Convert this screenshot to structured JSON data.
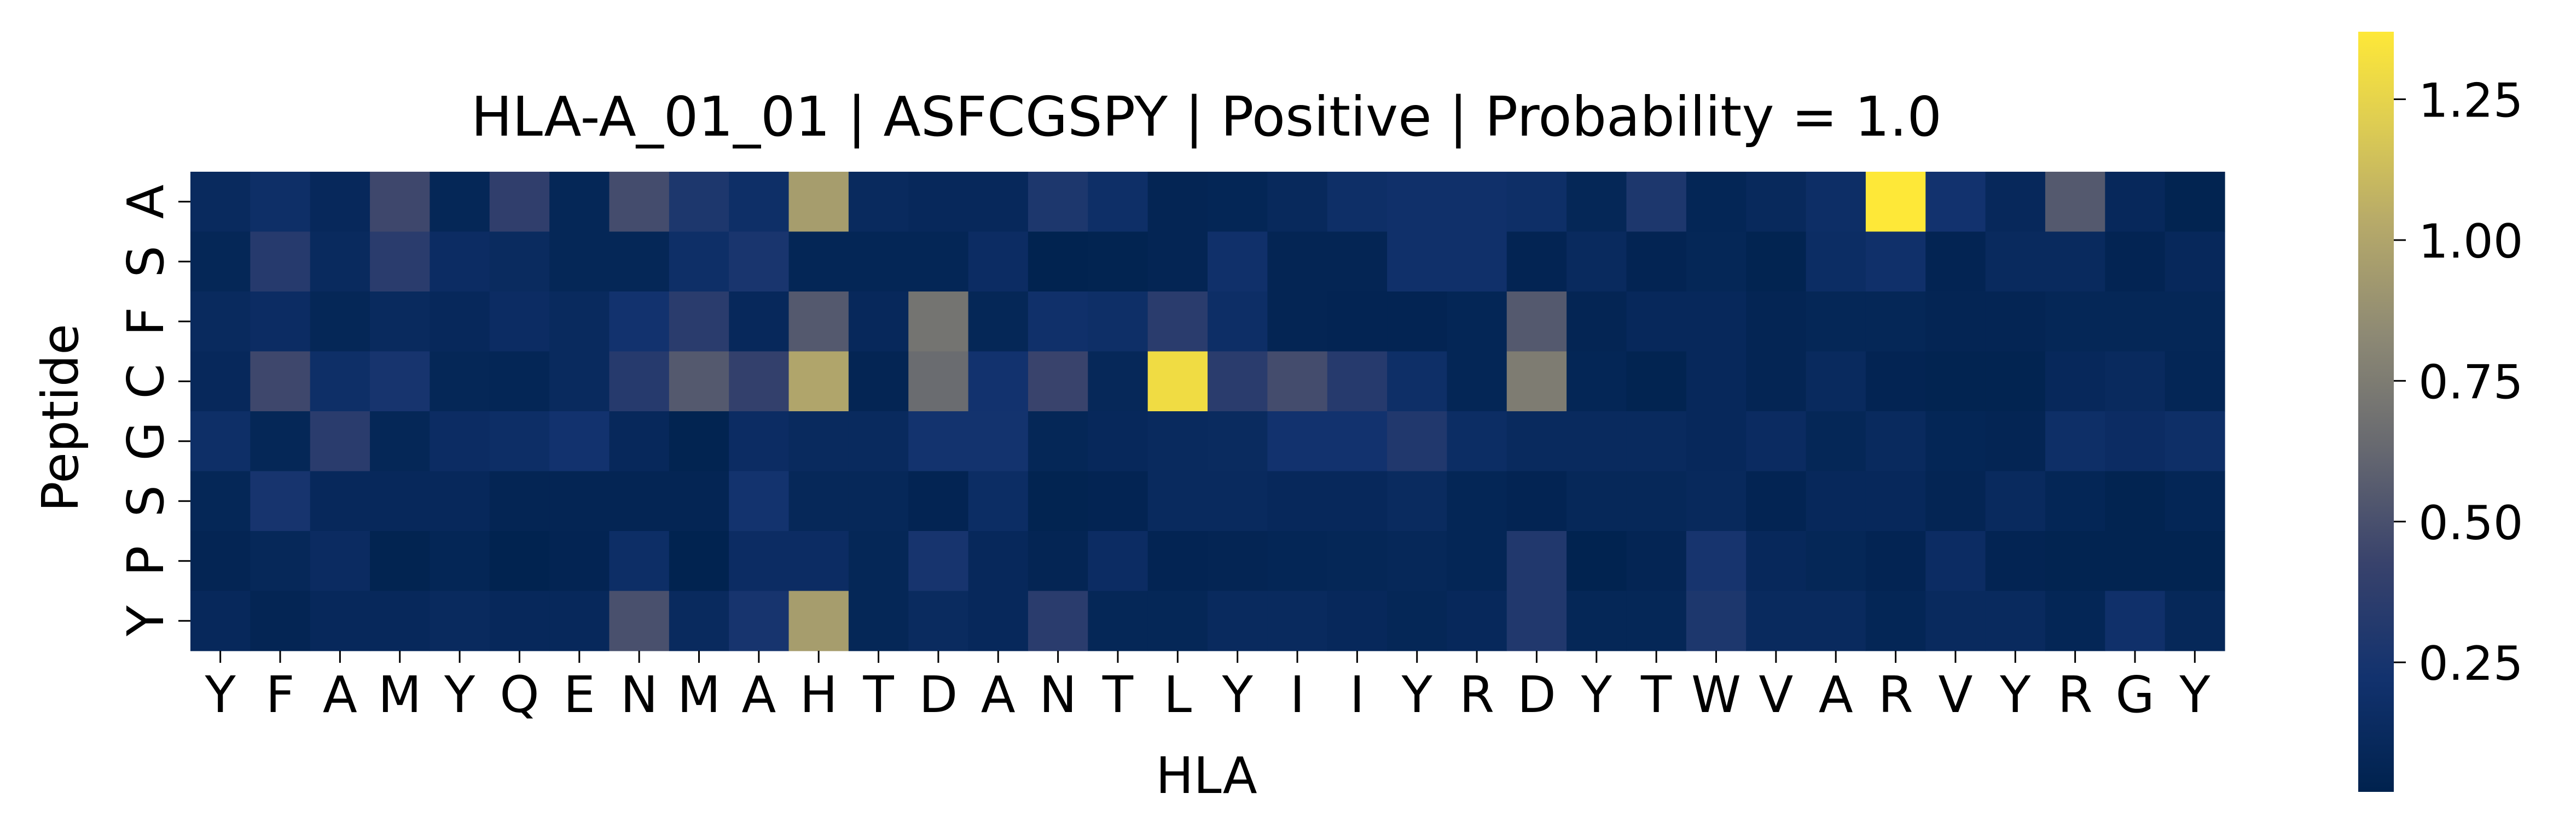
{
  "chart_data": {
    "type": "heatmap",
    "title": "HLA-A_01_01 | ASFCGSPY | Positive | Probability = 1.0",
    "xlabel": "HLA",
    "ylabel": "Peptide",
    "x_categories": [
      "Y",
      "F",
      "A",
      "M",
      "Y",
      "Q",
      "E",
      "N",
      "M",
      "A",
      "H",
      "T",
      "D",
      "A",
      "N",
      "T",
      "L",
      "Y",
      "I",
      "I",
      "Y",
      "R",
      "D",
      "Y",
      "T",
      "W",
      "V",
      "A",
      "R",
      "V",
      "Y",
      "R",
      "G",
      "Y"
    ],
    "y_categories": [
      "A",
      "S",
      "F",
      "C",
      "G",
      "S",
      "P",
      "Y"
    ],
    "colormap": "cividis",
    "colorbar": {
      "range": [
        0.02,
        1.37
      ],
      "ticks": [
        0.25,
        0.5,
        0.75,
        1.0,
        1.25
      ],
      "tick_labels": [
        "0.25",
        "0.50",
        "0.75",
        "1.00",
        "1.25"
      ]
    },
    "values": [
      [
        0.12,
        0.18,
        0.1,
        0.45,
        0.08,
        0.38,
        0.08,
        0.48,
        0.28,
        0.18,
        0.95,
        0.12,
        0.1,
        0.1,
        0.28,
        0.18,
        0.06,
        0.07,
        0.11,
        0.18,
        0.2,
        0.2,
        0.18,
        0.08,
        0.28,
        0.07,
        0.11,
        0.17,
        1.37,
        0.22,
        0.1,
        0.55,
        0.1,
        0.04
      ],
      [
        0.08,
        0.33,
        0.12,
        0.35,
        0.15,
        0.13,
        0.08,
        0.08,
        0.18,
        0.26,
        0.07,
        0.07,
        0.07,
        0.15,
        0.03,
        0.04,
        0.06,
        0.2,
        0.06,
        0.06,
        0.2,
        0.2,
        0.05,
        0.12,
        0.05,
        0.08,
        0.04,
        0.16,
        0.2,
        0.05,
        0.12,
        0.12,
        0.05,
        0.1
      ],
      [
        0.12,
        0.15,
        0.08,
        0.12,
        0.1,
        0.15,
        0.12,
        0.22,
        0.35,
        0.1,
        0.55,
        0.1,
        0.7,
        0.08,
        0.2,
        0.18,
        0.35,
        0.17,
        0.06,
        0.05,
        0.05,
        0.07,
        0.55,
        0.06,
        0.1,
        0.1,
        0.06,
        0.08,
        0.08,
        0.06,
        0.06,
        0.08,
        0.08,
        0.08
      ],
      [
        0.1,
        0.45,
        0.18,
        0.25,
        0.08,
        0.07,
        0.12,
        0.33,
        0.55,
        0.4,
        1.0,
        0.06,
        0.65,
        0.22,
        0.43,
        0.09,
        1.3,
        0.35,
        0.48,
        0.33,
        0.18,
        0.07,
        0.75,
        0.07,
        0.04,
        0.1,
        0.06,
        0.12,
        0.05,
        0.04,
        0.04,
        0.1,
        0.12,
        0.07
      ],
      [
        0.18,
        0.08,
        0.35,
        0.08,
        0.15,
        0.17,
        0.22,
        0.1,
        0.04,
        0.15,
        0.12,
        0.12,
        0.23,
        0.23,
        0.08,
        0.1,
        0.12,
        0.13,
        0.22,
        0.22,
        0.3,
        0.16,
        0.12,
        0.12,
        0.12,
        0.1,
        0.14,
        0.08,
        0.12,
        0.07,
        0.06,
        0.18,
        0.15,
        0.18
      ],
      [
        0.08,
        0.25,
        0.1,
        0.1,
        0.1,
        0.06,
        0.06,
        0.06,
        0.06,
        0.23,
        0.09,
        0.09,
        0.05,
        0.16,
        0.04,
        0.05,
        0.12,
        0.12,
        0.1,
        0.1,
        0.13,
        0.07,
        0.05,
        0.09,
        0.09,
        0.11,
        0.05,
        0.1,
        0.1,
        0.06,
        0.12,
        0.07,
        0.04,
        0.07
      ],
      [
        0.06,
        0.09,
        0.14,
        0.04,
        0.07,
        0.03,
        0.05,
        0.17,
        0.03,
        0.15,
        0.15,
        0.08,
        0.25,
        0.1,
        0.06,
        0.15,
        0.05,
        0.06,
        0.07,
        0.08,
        0.09,
        0.07,
        0.3,
        0.03,
        0.06,
        0.25,
        0.1,
        0.08,
        0.05,
        0.15,
        0.05,
        0.04,
        0.04,
        0.04
      ],
      [
        0.1,
        0.06,
        0.1,
        0.1,
        0.12,
        0.1,
        0.1,
        0.5,
        0.12,
        0.25,
        0.95,
        0.08,
        0.13,
        0.1,
        0.35,
        0.08,
        0.08,
        0.12,
        0.12,
        0.1,
        0.08,
        0.1,
        0.3,
        0.08,
        0.08,
        0.28,
        0.12,
        0.12,
        0.07,
        0.12,
        0.12,
        0.07,
        0.2,
        0.09
      ]
    ]
  }
}
